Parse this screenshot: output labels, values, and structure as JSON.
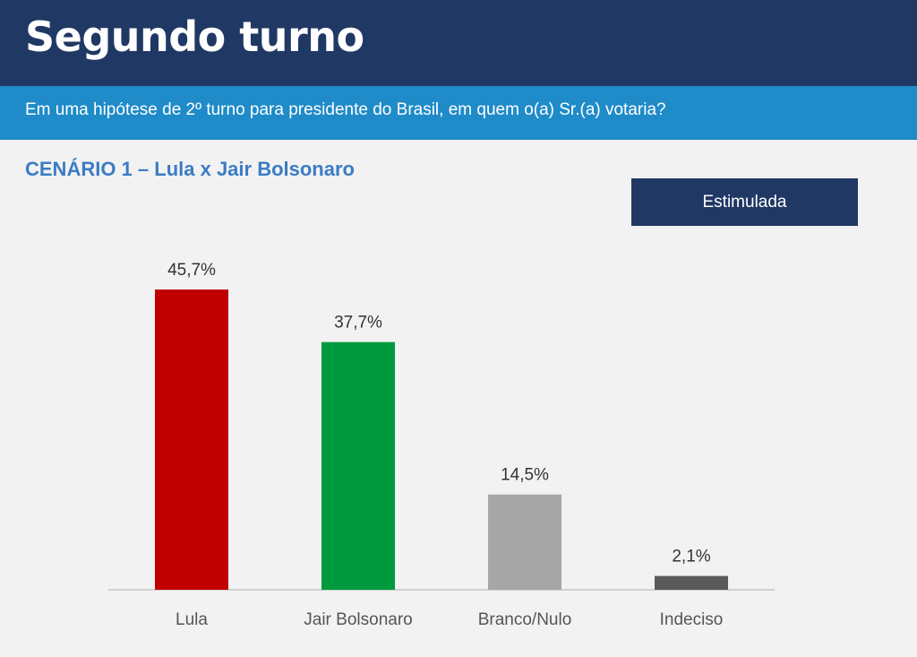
{
  "header": {
    "title": "Segundo turno",
    "question": "Em uma hipótese de 2º turno para presidente do Brasil, em quem o(a) Sr.(a) votaria?"
  },
  "scenario_label": "CENÁRIO 1 – Lula x Jair Bolsonaro",
  "badge_label": "Estimulada",
  "colors": {
    "header_bg": "#203864",
    "subbar_bg": "#1f8bc9",
    "scenario_text": "#3b7cc4"
  },
  "chart_data": {
    "type": "bar",
    "categories": [
      "Lula",
      "Jair Bolsonaro",
      "Branco/Nulo",
      "Indeciso"
    ],
    "values": [
      45.7,
      37.7,
      14.5,
      2.1
    ],
    "value_labels": [
      "45,7%",
      "37,7%",
      "14,5%",
      "2,1%"
    ],
    "colors": [
      "#c00000",
      "#009a3e",
      "#a6a6a6",
      "#595959"
    ],
    "title": "",
    "xlabel": "",
    "ylabel": "",
    "ylim": [
      0,
      45.7
    ],
    "grid": false,
    "legend": "none"
  }
}
